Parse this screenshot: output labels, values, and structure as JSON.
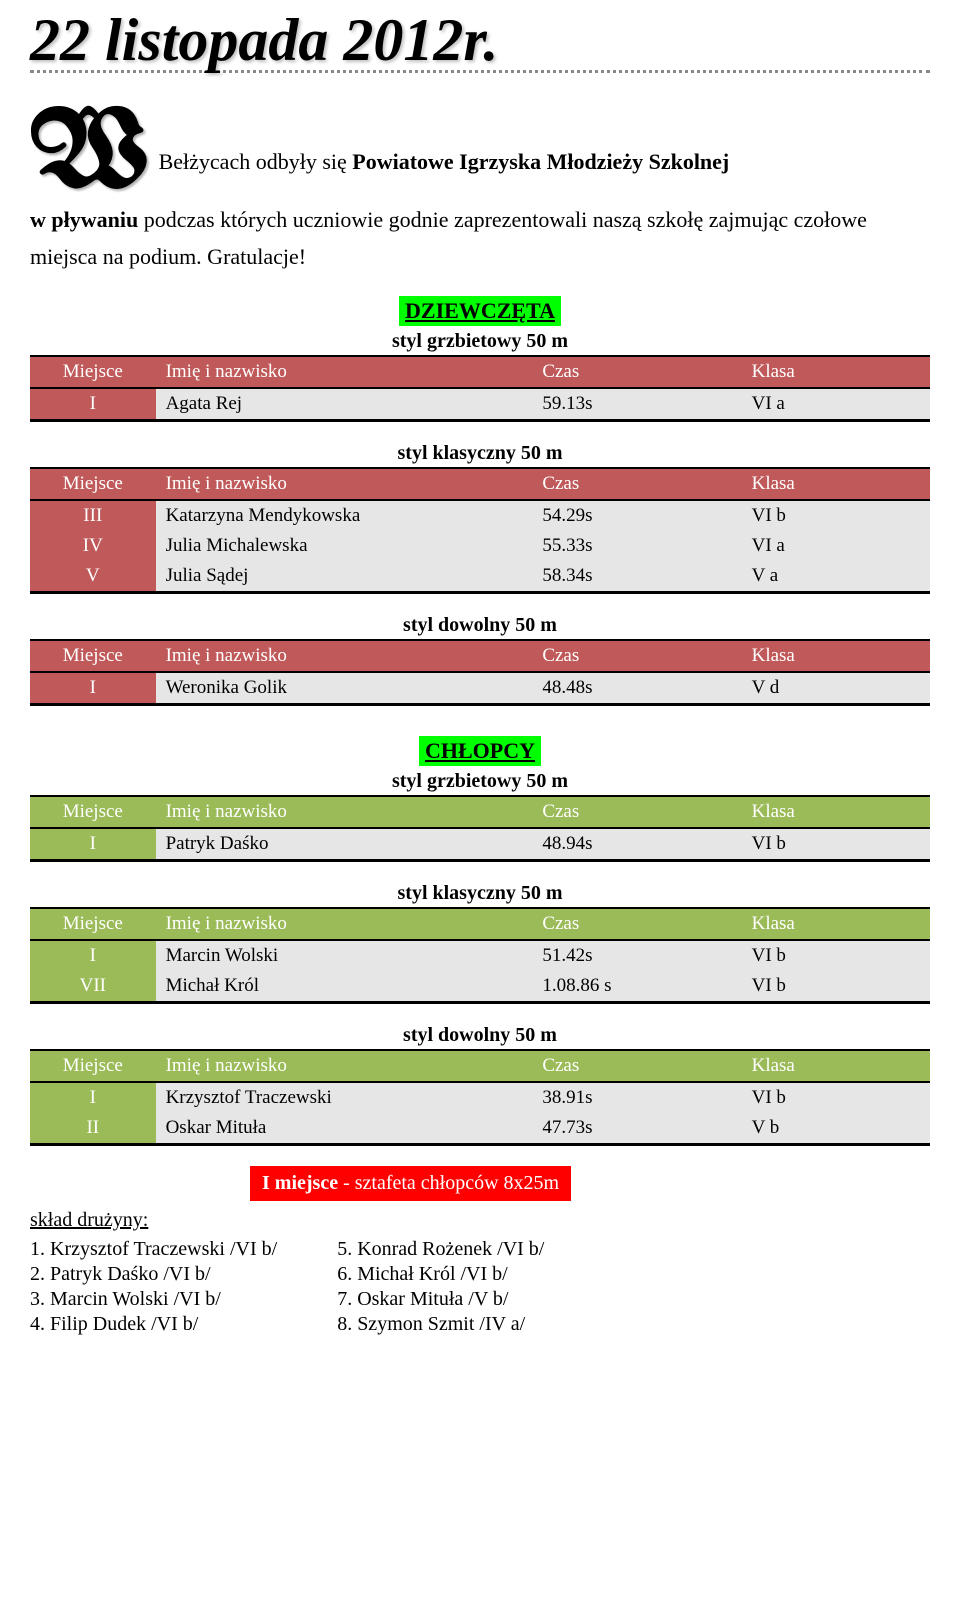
{
  "title": "22 listopada 2012r.",
  "dropcap": "W",
  "intro_line1": "Bełżycach odbyły się ",
  "intro_bold1": "Powiatowe Igrzyska Młodzieży Szkolnej",
  "intro_line2a": "w pływaniu",
  "intro_line2b": " podczas których uczniowie godnie zaprezentowali naszą szkołę zajmując czołowe miejsca na podium. Gratulacje!",
  "girls": {
    "label": "DZIEWCZĘTA",
    "tables": [
      {
        "caption": "styl grzbietowy 50 m",
        "headers": [
          "Miejsce",
          "Imię i nazwisko",
          "Czas",
          "Klasa"
        ],
        "rows": [
          [
            "I",
            "Agata Rej",
            "59.13s",
            "VI a"
          ]
        ]
      },
      {
        "caption": "styl klasyczny 50 m",
        "headers": [
          "Miejsce",
          "Imię i nazwisko",
          "Czas",
          "Klasa"
        ],
        "rows": [
          [
            "III",
            "Katarzyna Mendykowska",
            "54.29s",
            "VI b"
          ],
          [
            "IV",
            "Julia Michalewska",
            "55.33s",
            "VI a"
          ],
          [
            "V",
            "Julia Sądej",
            "58.34s",
            "V a"
          ]
        ]
      },
      {
        "caption": "styl dowolny 50 m",
        "headers": [
          "Miejsce",
          "Imię i nazwisko",
          "Czas",
          "Klasa"
        ],
        "rows": [
          [
            "I",
            "Weronika Golik",
            "48.48s",
            "V d"
          ]
        ]
      }
    ]
  },
  "boys": {
    "label": "CHŁOPCY",
    "tables": [
      {
        "caption": "styl grzbietowy 50 m",
        "headers": [
          "Miejsce",
          "Imię i nazwisko",
          "Czas",
          "Klasa"
        ],
        "rows": [
          [
            "I",
            "Patryk Daśko",
            "48.94s",
            "VI b"
          ]
        ]
      },
      {
        "caption": "styl klasyczny 50 m",
        "headers": [
          "Miejsce",
          "Imię i nazwisko",
          "Czas",
          "Klasa"
        ],
        "rows": [
          [
            "I",
            "Marcin Wolski",
            "51.42s",
            "VI b"
          ],
          [
            "VII",
            "Michał Król",
            "1.08.86 s",
            "VI b"
          ]
        ]
      },
      {
        "caption": "styl dowolny 50 m",
        "headers": [
          "Miejsce",
          "Imię i nazwisko",
          "Czas",
          "Klasa"
        ],
        "rows": [
          [
            "I",
            "Krzysztof Traczewski",
            "38.91s",
            "VI b"
          ],
          [
            "II",
            "Oskar Mituła",
            "47.73s",
            "V b"
          ]
        ]
      }
    ]
  },
  "relay": {
    "badge_bold": "I miejsce",
    "badge_rest": " - sztafeta chłopców 8x25m",
    "team_label": "skład drużyny:",
    "left": [
      "1. Krzysztof Traczewski /VI b/",
      "2. Patryk Daśko /VI b/",
      "3. Marcin Wolski /VI b/",
      "4. Filip Dudek /VI b/"
    ],
    "right": [
      "5. Konrad Rożenek /VI b/",
      "6. Michał Król /VI b/",
      "7. Oskar Mituła /V b/",
      "8. Szymon Szmit /IV a/"
    ]
  },
  "theme": {
    "girls_header_bg": "#c05a5a",
    "boys_header_bg": "#9bbb59",
    "row_bg": "#e6e6e6",
    "badge_green": "#00ff00",
    "relay_red": "#ff0000"
  }
}
